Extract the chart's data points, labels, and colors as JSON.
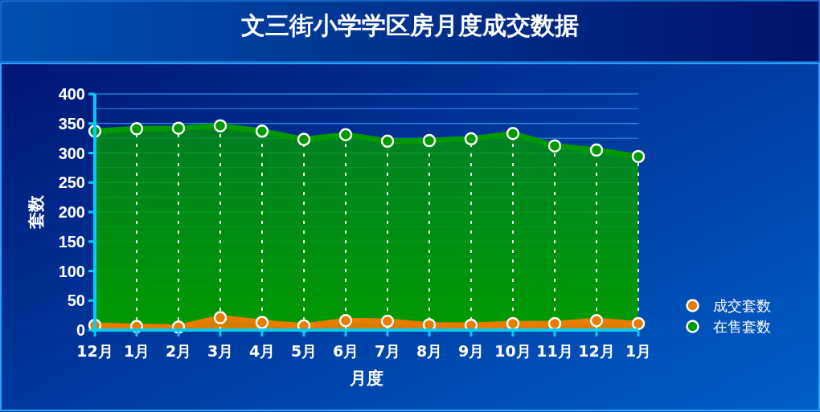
{
  "chart_data": {
    "type": "area",
    "title": "文三街小学学区房月度成交数据",
    "xlabel": "月度",
    "ylabel": "套数",
    "categories": [
      "12月",
      "1月",
      "2月",
      "3月",
      "4月",
      "5月",
      "6月",
      "7月",
      "8月",
      "9月",
      "10月",
      "11月",
      "12月",
      "1月"
    ],
    "series": [
      {
        "name": "成交套数",
        "color": "#e87b00",
        "values": [
          8,
          6,
          5,
          21,
          13,
          7,
          16,
          15,
          9,
          8,
          11,
          11,
          16,
          11
        ]
      },
      {
        "name": "在售套数",
        "color": "#009900",
        "values": [
          337,
          341,
          342,
          346,
          337,
          323,
          331,
          320,
          321,
          324,
          333,
          312,
          305,
          294
        ]
      }
    ],
    "ylim": [
      0,
      400
    ],
    "yticks": [
      0,
      50,
      100,
      150,
      200,
      250,
      300,
      350,
      400
    ],
    "grid": true,
    "legend": "right",
    "marker": "circle"
  }
}
